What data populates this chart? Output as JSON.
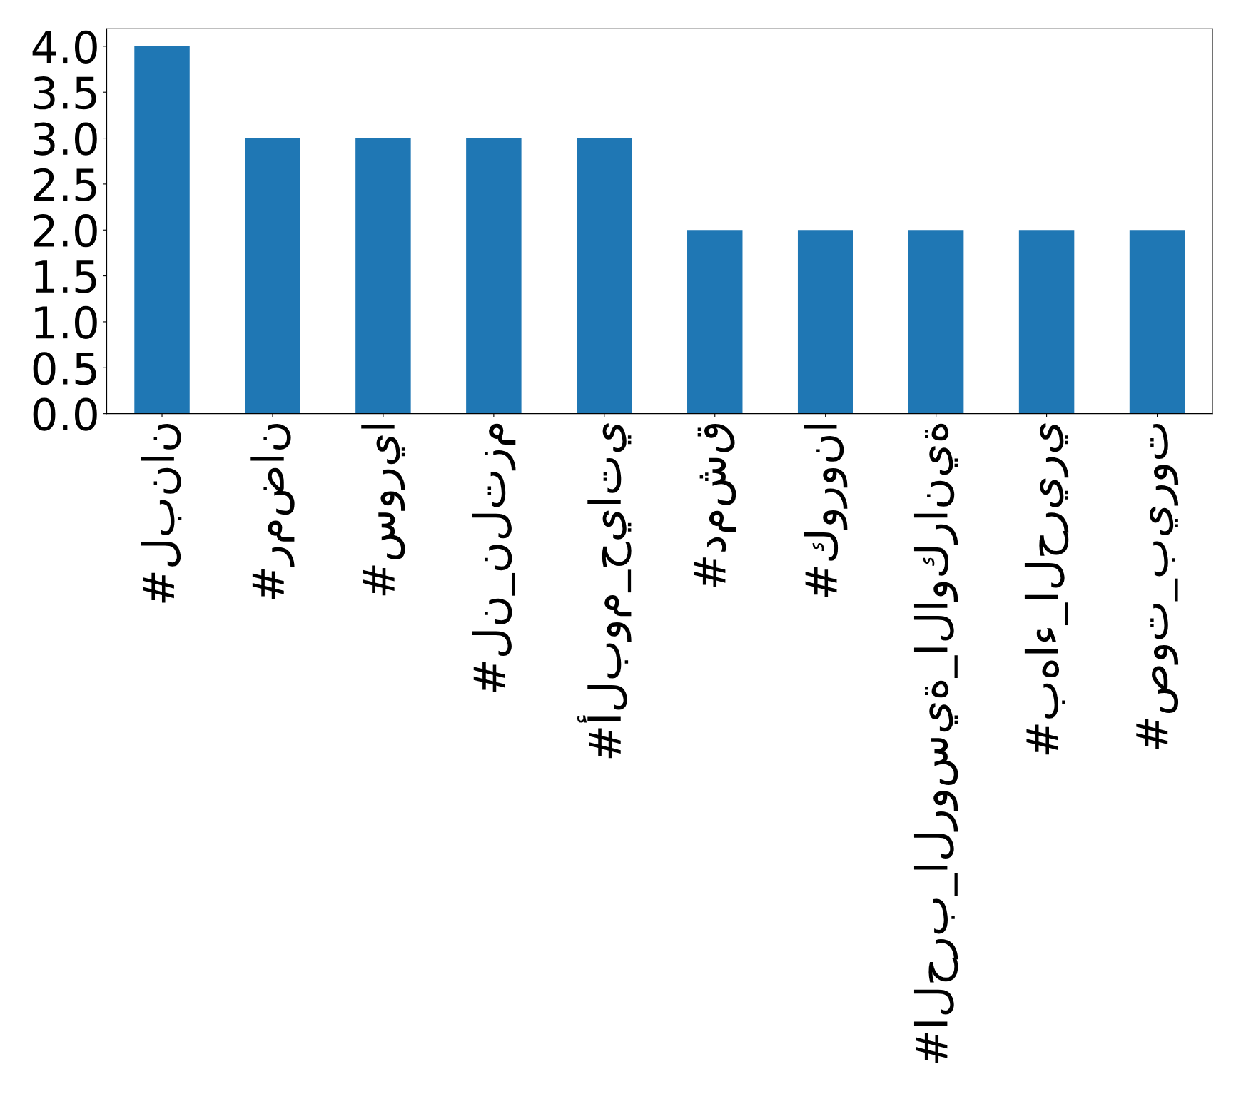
{
  "chart_data": {
    "type": "bar",
    "categories": [
      "#لبنان",
      "#رمضان",
      "#سوريا",
      "#لن_نلتزم",
      "#ألبوم_حياتي",
      "#دمشق",
      "#كورونا",
      "#الحرب_الروسية_الاوكرانية",
      "#بهاء_الحريري",
      "#صوت_بيروت"
    ],
    "values": [
      4,
      3,
      3,
      3,
      3,
      2,
      2,
      2,
      2,
      2
    ],
    "color": "#1f77b4",
    "ylim": [
      0,
      4.19
    ],
    "yticks": [
      {
        "value": 0,
        "label": "0.0"
      },
      0.5,
      {
        "value": 1,
        "label": "1.0"
      },
      1.5,
      {
        "value": 2,
        "label": "2.0"
      },
      2.5,
      {
        "value": 3,
        "label": "3.0"
      },
      3.5,
      {
        "value": 4,
        "label": "4.0"
      }
    ],
    "grid": false,
    "legend": false
  }
}
